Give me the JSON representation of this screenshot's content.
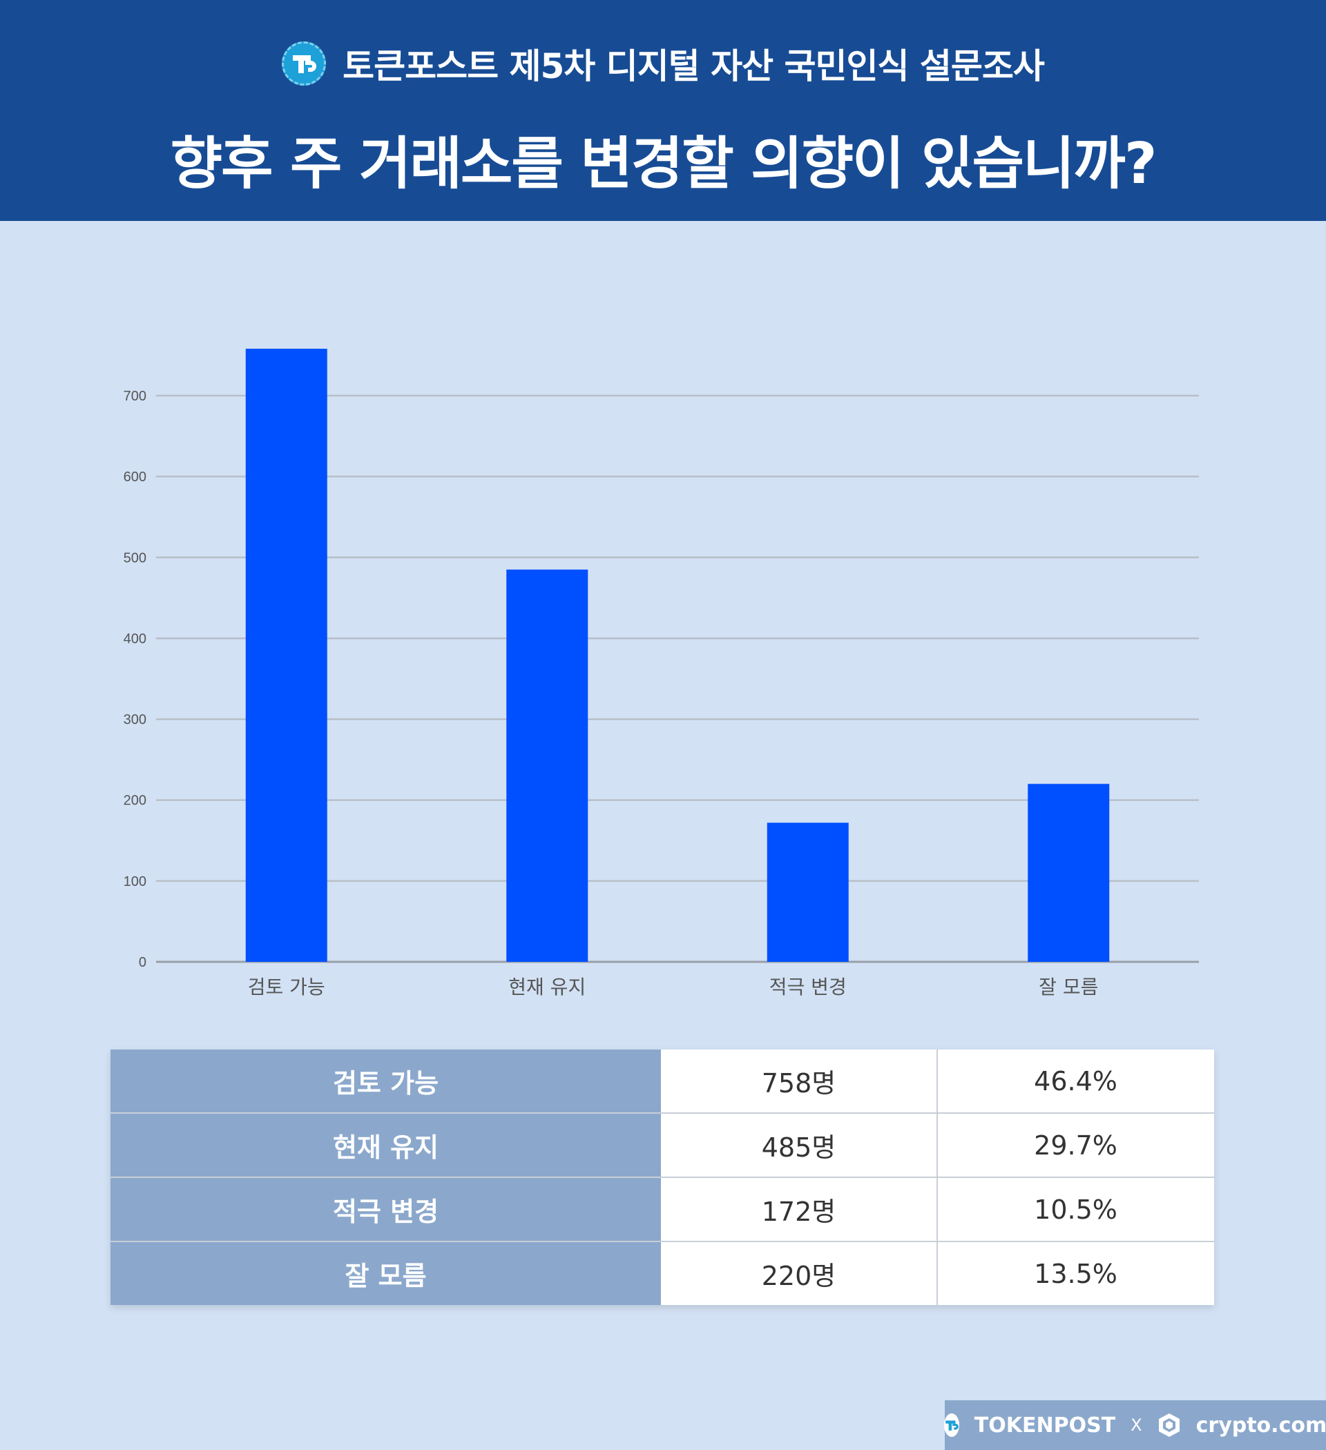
{
  "header": {
    "survey_title": "토큰포스트 제5차 디지털 자산 국민인식 설문조사",
    "question": "향후 주 거래소를 변경할 의향이 있습니까?"
  },
  "colors": {
    "header_bg": "#174c95",
    "page_bg": "#d2e1f4",
    "bar": "#0050ff",
    "table_label_bg": "#8ba8cc"
  },
  "chart_data": {
    "type": "bar",
    "categories": [
      "검토 가능",
      "현재 유지",
      "적극 변경",
      "잘 모름"
    ],
    "values": [
      758,
      485,
      172,
      220
    ],
    "yticks": [
      0,
      100,
      200,
      300,
      400,
      500,
      600,
      700
    ],
    "ylim": [
      0,
      800
    ],
    "grid": true,
    "legend": "none"
  },
  "table": {
    "rows": [
      {
        "label": "검토 가능",
        "count": "758명",
        "percent": "46.4%"
      },
      {
        "label": "현재 유지",
        "count": "485명",
        "percent": "29.7%"
      },
      {
        "label": "적극 변경",
        "count": "172명",
        "percent": "10.5%"
      },
      {
        "label": "잘 모름",
        "count": "220명",
        "percent": "13.5%"
      }
    ]
  },
  "footer": {
    "brand_left": "TOKENPOST",
    "separator": "X",
    "brand_right": "crypto.com",
    "logo_left_icon": "tokenpost-logo-icon",
    "logo_right_icon": "crypto-com-logo-icon"
  }
}
